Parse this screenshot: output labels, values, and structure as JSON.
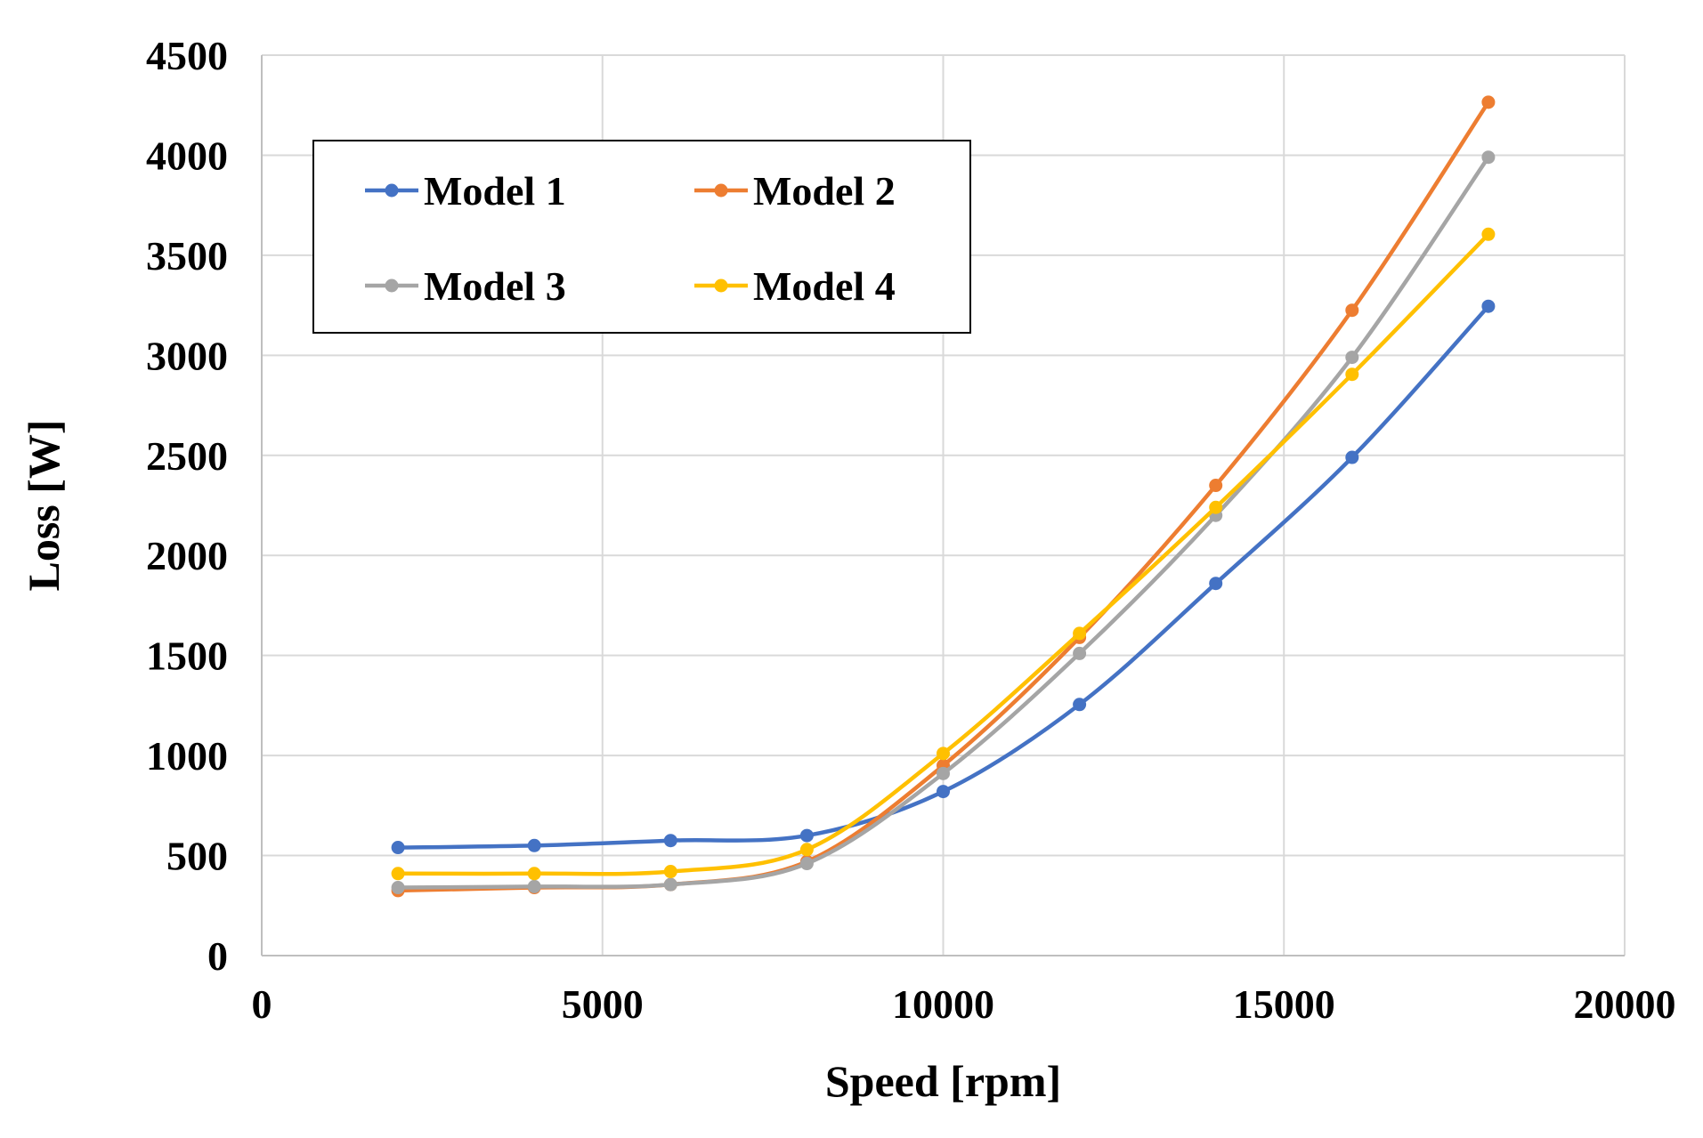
{
  "chart_data": {
    "type": "line",
    "title": "",
    "xlabel": "Speed [rpm]",
    "ylabel": "Loss [W]",
    "xlim": [
      0,
      20000
    ],
    "ylim": [
      0,
      4500
    ],
    "xticks": [
      0,
      5000,
      10000,
      15000,
      20000
    ],
    "yticks": [
      0,
      500,
      1000,
      1500,
      2000,
      2500,
      3000,
      3500,
      4000,
      4500
    ],
    "x_tick_labels": [
      "0",
      "5000",
      "10000",
      "15000",
      "20000"
    ],
    "y_tick_labels": [
      "0",
      "500",
      "1000",
      "1500",
      "2000",
      "2500",
      "3000",
      "3500",
      "4000",
      "4500"
    ],
    "grid": true,
    "legend_position": "top-left",
    "x": [
      2000,
      4000,
      6000,
      8000,
      10000,
      12000,
      14000,
      16000,
      18000
    ],
    "series": [
      {
        "name": "Model 1",
        "color": "#4472C4",
        "values": [
          540,
          550,
          575,
          600,
          820,
          1255,
          1860,
          2490,
          3245
        ]
      },
      {
        "name": "Model 2",
        "color": "#ED7D31",
        "values": [
          325,
          340,
          355,
          470,
          950,
          1590,
          2350,
          3225,
          4265
        ]
      },
      {
        "name": "Model 3",
        "color": "#A5A5A5",
        "values": [
          340,
          345,
          355,
          460,
          910,
          1510,
          2200,
          2990,
          3990
        ]
      },
      {
        "name": "Model 4",
        "color": "#FFC000",
        "values": [
          410,
          410,
          420,
          530,
          1010,
          1610,
          2240,
          2905,
          3605
        ]
      }
    ]
  }
}
